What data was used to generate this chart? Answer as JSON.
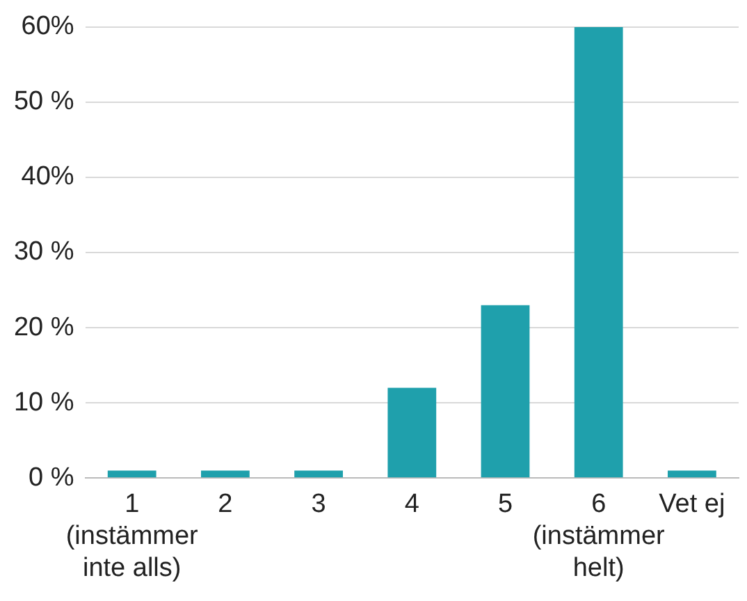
{
  "chart_data": {
    "type": "bar",
    "categories": [
      "1\n(instämmer\ninte alls)",
      "2",
      "3",
      "4",
      "5",
      "6\n(instämmer\nhelt)",
      "Vet ej"
    ],
    "values": [
      1,
      1,
      1,
      12,
      23,
      60,
      1
    ],
    "color": "#1fa0ac",
    "ylim": [
      0,
      60
    ],
    "yticks": [
      {
        "value": 0,
        "label": "0 %"
      },
      {
        "value": 10,
        "label": "10 %"
      },
      {
        "value": 20,
        "label": "20 %"
      },
      {
        "value": 30,
        "label": "30 %"
      },
      {
        "value": 40,
        "label": "40%"
      },
      {
        "value": 50,
        "label": "50 %"
      },
      {
        "value": 60,
        "label": "60%"
      }
    ],
    "grid": "y",
    "legend": false
  }
}
